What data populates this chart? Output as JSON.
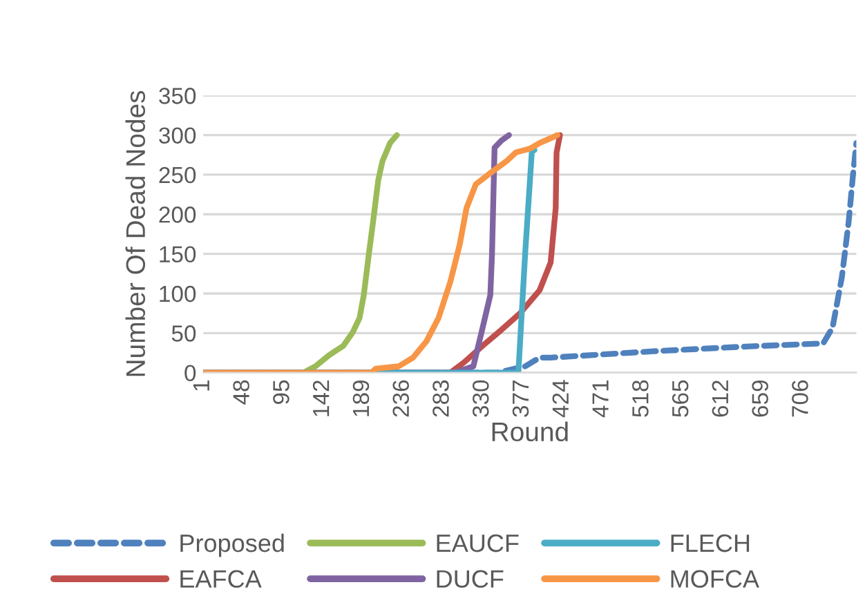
{
  "chart_data": {
    "type": "line",
    "xlabel": "Round",
    "ylabel": "Number Of Dead Nodes",
    "xlim": [
      1,
      770
    ],
    "xticks": [
      1,
      48,
      95,
      142,
      189,
      236,
      283,
      330,
      377,
      424,
      471,
      518,
      565,
      612,
      659,
      706
    ],
    "ylim": [
      0,
      350
    ],
    "yticks": [
      0,
      50,
      100,
      150,
      200,
      250,
      300,
      350
    ],
    "grid": "y",
    "legend": "bottom",
    "marker": "none",
    "series": [
      {
        "name": "Proposed",
        "color": "#4f81bd",
        "line_style": "dashed",
        "x": [
          1,
          347,
          380,
          397,
          410,
          531,
          640,
          731,
          742,
          753,
          761,
          766,
          770
        ],
        "values": [
          0,
          0,
          8,
          19,
          19,
          27,
          33,
          37,
          57,
          121,
          191,
          249,
          290
        ]
      },
      {
        "name": "EAFCA",
        "color": "#c0504d",
        "line_style": "solid",
        "x": [
          1,
          292,
          308,
          330,
          352,
          374,
          397,
          410,
          416,
          417,
          421
        ],
        "values": [
          0,
          0,
          13,
          34,
          54,
          75,
          104,
          139,
          208,
          278,
          300
        ]
      },
      {
        "name": "EAUCF",
        "color": "#9bbb59",
        "line_style": "solid",
        "x": [
          1,
          119,
          133,
          149,
          166,
          177,
          185,
          190,
          196,
          201,
          207,
          212,
          221,
          229
        ],
        "values": [
          0,
          0,
          8,
          22,
          34,
          51,
          69,
          98,
          150,
          191,
          243,
          267,
          290,
          300
        ]
      },
      {
        "name": "DUCF",
        "color": "#8064a2",
        "line_style": "solid",
        "x": [
          1,
          297,
          319,
          330,
          339,
          341,
          344,
          352,
          361
        ],
        "values": [
          0,
          0,
          8,
          57,
          98,
          150,
          284,
          293,
          300
        ]
      },
      {
        "name": "FLECH",
        "color": "#4bacc6",
        "line_style": "solid",
        "x": [
          1,
          204,
          372,
          380,
          388,
          391
        ],
        "values": [
          0,
          0,
          0,
          150,
          281,
          281
        ]
      },
      {
        "name": "MOFCA",
        "color": "#f79646",
        "line_style": "solid",
        "x": [
          1,
          199,
          204,
          231,
          248,
          264,
          278,
          292,
          303,
          311,
          322,
          339,
          358,
          369,
          386,
          397,
          410,
          418
        ],
        "values": [
          0,
          0,
          5,
          8,
          19,
          40,
          69,
          115,
          162,
          208,
          238,
          252,
          267,
          278,
          283,
          290,
          296,
          300
        ]
      }
    ]
  }
}
